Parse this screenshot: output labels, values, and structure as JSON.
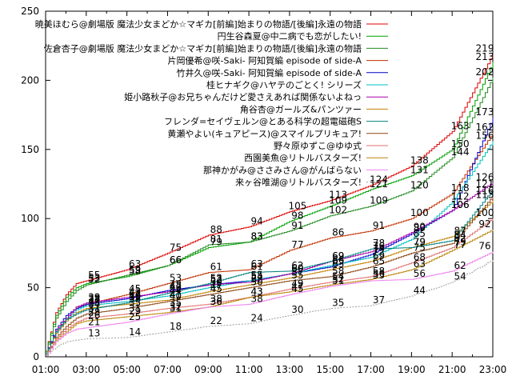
{
  "chart_data": {
    "type": "line",
    "title": "",
    "xlabel": "",
    "ylabel": "",
    "xlim": [
      1,
      23
    ],
    "ylim": [
      0,
      250
    ],
    "x_ticks": [
      "01:00",
      "03:00",
      "05:00",
      "07:00",
      "09:00",
      "11:00",
      "13:00",
      "15:00",
      "17:00",
      "19:00",
      "21:00",
      "23:00"
    ],
    "y_ticks": [
      0,
      50,
      100,
      150,
      200,
      250
    ],
    "grid": false,
    "legend": "top-right",
    "series": [
      {
        "name": "暁美ほむら@劇場版 魔法少女まどか☆マギカ[前編]始まりの物語/[後編]永遠の物語",
        "color": "#dd0000",
        "dash": "",
        "points": [
          [
            1,
            4
          ],
          [
            1.5,
            32
          ],
          [
            2,
            45
          ],
          [
            2.5,
            53
          ],
          [
            3,
            55
          ],
          [
            5,
            63
          ],
          [
            7,
            75
          ],
          [
            9,
            88
          ],
          [
            11,
            94
          ],
          [
            13,
            105
          ],
          [
            15,
            113
          ],
          [
            17,
            124
          ],
          [
            19,
            138
          ],
          [
            21,
            163
          ],
          [
            23,
            219
          ]
        ],
        "labels": [
          55,
          63,
          75,
          88,
          94,
          105,
          113,
          124,
          138,
          163,
          219
        ]
      },
      {
        "name": "円生谷森夏@中二病でも恋がしたい!",
        "color": "#00a000",
        "dash": "",
        "points": [
          [
            1,
            4
          ],
          [
            1.5,
            30
          ],
          [
            2,
            43
          ],
          [
            2.5,
            50
          ],
          [
            3,
            53
          ],
          [
            5,
            58
          ],
          [
            7,
            66
          ],
          [
            9,
            79
          ],
          [
            11,
            83
          ],
          [
            13,
            98
          ],
          [
            15,
            109
          ],
          [
            17,
            121
          ],
          [
            19,
            131
          ],
          [
            21,
            150
          ],
          [
            23,
            213
          ]
        ],
        "labels": [
          53,
          58,
          66,
          79,
          83,
          98,
          109,
          121,
          131,
          150,
          213
        ]
      },
      {
        "name": "佐倉杏子@劇場版 魔法少女まどか☆マギカ[前編]始まりの物語/[後編]永遠の物語",
        "color": "#228b22",
        "dash": "",
        "points": [
          [
            1,
            3
          ],
          [
            1.5,
            28
          ],
          [
            2,
            40
          ],
          [
            2.5,
            48
          ],
          [
            3,
            52
          ],
          [
            5,
            59
          ],
          [
            7,
            66
          ],
          [
            9,
            81
          ],
          [
            11,
            83
          ],
          [
            13,
            91
          ],
          [
            15,
            102
          ],
          [
            17,
            109
          ],
          [
            19,
            120
          ],
          [
            21,
            144
          ],
          [
            23,
            202
          ]
        ],
        "labels": [
          52,
          59,
          66,
          81,
          83,
          91,
          102,
          109,
          120,
          144,
          202
        ]
      },
      {
        "name": "片岡優希@咲-Saki- 阿知賀編 episode of side-A",
        "color": "#c03000",
        "dash": "",
        "points": [
          [
            1,
            2
          ],
          [
            1.5,
            18
          ],
          [
            2,
            28
          ],
          [
            2.5,
            36
          ],
          [
            3,
            38
          ],
          [
            5,
            45
          ],
          [
            7,
            53
          ],
          [
            9,
            61
          ],
          [
            11,
            63
          ],
          [
            13,
            77
          ],
          [
            15,
            86
          ],
          [
            17,
            91
          ],
          [
            19,
            100
          ],
          [
            21,
            118
          ],
          [
            23,
            162
          ]
        ],
        "labels": [
          38,
          45,
          53,
          61,
          63,
          77,
          86,
          91,
          100,
          118,
          162
        ]
      },
      {
        "name": "竹井久@咲-Saki- 阿知賀編 episode of side-A",
        "color": "#0000cc",
        "dash": "",
        "points": [
          [
            1,
            2
          ],
          [
            1.5,
            20
          ],
          [
            2,
            30
          ],
          [
            2.5,
            35
          ],
          [
            3,
            38
          ],
          [
            5,
            42
          ],
          [
            7,
            48
          ],
          [
            9,
            52
          ],
          [
            11,
            55
          ],
          [
            13,
            60
          ],
          [
            15,
            65
          ],
          [
            17,
            74
          ],
          [
            19,
            89
          ],
          [
            21,
            106
          ],
          [
            23,
            173
          ]
        ],
        "labels": [
          38,
          42,
          48,
          52,
          55,
          60,
          65,
          74,
          89,
          106,
          173
        ]
      },
      {
        "name": "桂ヒナギク@ハヤテのごとく! シリーズ",
        "color": "#00c0c0",
        "dash": "",
        "points": [
          [
            1,
            1
          ],
          [
            1.5,
            18
          ],
          [
            2,
            27
          ],
          [
            2.5,
            34
          ],
          [
            3,
            37
          ],
          [
            5,
            40
          ],
          [
            7,
            44
          ],
          [
            9,
            50
          ],
          [
            11,
            55
          ],
          [
            13,
            60
          ],
          [
            15,
            66
          ],
          [
            17,
            72
          ],
          [
            19,
            85
          ],
          [
            21,
            112
          ],
          [
            23,
            156
          ]
        ],
        "labels": [
          37,
          40,
          44,
          50,
          55,
          60,
          66,
          72,
          85,
          112,
          156
        ]
      },
      {
        "name": "姫小路秋子@お兄ちゃんだけど愛さえあれば関係ないよねっ",
        "color": "#aa00aa",
        "dash": "",
        "points": [
          [
            1,
            2
          ],
          [
            1.5,
            19
          ],
          [
            2,
            28
          ],
          [
            2.5,
            36
          ],
          [
            3,
            39
          ],
          [
            5,
            43
          ],
          [
            7,
            47
          ],
          [
            9,
            52
          ],
          [
            11,
            54
          ],
          [
            13,
            60
          ],
          [
            15,
            69
          ],
          [
            17,
            76
          ],
          [
            19,
            90
          ],
          [
            21,
            106
          ],
          [
            23,
            126
          ]
        ],
        "labels": [
          39,
          43,
          47,
          52,
          54,
          60,
          69,
          76,
          90,
          106,
          126
        ]
      },
      {
        "name": "角谷杏@ガールズ&パンツァー",
        "color": "#c08000",
        "dash": "",
        "points": [
          [
            1,
            2
          ],
          [
            1.5,
            17
          ],
          [
            2,
            26
          ],
          [
            2.5,
            32
          ],
          [
            3,
            35
          ],
          [
            5,
            38
          ],
          [
            7,
            41
          ],
          [
            9,
            47
          ],
          [
            11,
            52
          ],
          [
            13,
            57
          ],
          [
            15,
            63
          ],
          [
            17,
            69
          ],
          [
            19,
            79
          ],
          [
            21,
            87
          ],
          [
            23,
            113
          ]
        ],
        "labels": [
          35,
          38,
          41,
          47,
          52,
          57,
          63,
          69,
          79,
          87,
          113
        ]
      },
      {
        "name": "フレンダ=セイヴェルン@とある科学の超電磁砲S",
        "color": "#008080",
        "dash": "",
        "points": [
          [
            1,
            2
          ],
          [
            1.5,
            18
          ],
          [
            2,
            27
          ],
          [
            2.5,
            31
          ],
          [
            3,
            34
          ],
          [
            5,
            39
          ],
          [
            7,
            46
          ],
          [
            9,
            53
          ],
          [
            11,
            61
          ],
          [
            13,
            62
          ],
          [
            15,
            69
          ],
          [
            17,
            78
          ],
          [
            19,
            79
          ],
          [
            21,
            84
          ],
          [
            23,
            121
          ]
        ],
        "labels": [
          34,
          39,
          46,
          53,
          61,
          62,
          69,
          78,
          79,
          84,
          121
        ]
      },
      {
        "name": "黄瀬やよい(キュアピース)@スマイルプリキュア!",
        "color": "#8b4513",
        "dash": "",
        "points": [
          [
            1,
            1
          ],
          [
            1.5,
            14
          ],
          [
            2,
            22
          ],
          [
            2.5,
            28
          ],
          [
            3,
            31
          ],
          [
            5,
            35
          ],
          [
            7,
            40
          ],
          [
            9,
            45
          ],
          [
            11,
            50
          ],
          [
            13,
            55
          ],
          [
            15,
            58
          ],
          [
            17,
            65
          ],
          [
            19,
            75
          ],
          [
            21,
            82
          ],
          [
            23,
            116
          ]
        ],
        "labels": [
          31,
          35,
          40,
          45,
          50,
          55,
          58,
          65,
          75,
          82,
          116
        ]
      },
      {
        "name": "野々原ゆずこ@ゆゆ式",
        "color": "#e07070",
        "dash": "",
        "points": [
          [
            1,
            1
          ],
          [
            1.5,
            13
          ],
          [
            2,
            20
          ],
          [
            2.5,
            25
          ],
          [
            3,
            28
          ],
          [
            5,
            31
          ],
          [
            7,
            35
          ],
          [
            9,
            38
          ],
          [
            11,
            43
          ],
          [
            13,
            49
          ],
          [
            15,
            54
          ],
          [
            17,
            58
          ],
          [
            19,
            68
          ],
          [
            21,
            79
          ],
          [
            23,
            100
          ]
        ],
        "labels": [
          28,
          31,
          35,
          38,
          43,
          49,
          54,
          58,
          68,
          79,
          100
        ]
      },
      {
        "name": "西園美魚@リトルバスターズ!",
        "color": "#b8860b",
        "dash": "",
        "points": [
          [
            1,
            1
          ],
          [
            1.5,
            12
          ],
          [
            2,
            18
          ],
          [
            2.5,
            24
          ],
          [
            3,
            26
          ],
          [
            5,
            29
          ],
          [
            7,
            32
          ],
          [
            9,
            36
          ],
          [
            11,
            43
          ],
          [
            13,
            47
          ],
          [
            15,
            52
          ],
          [
            17,
            56
          ],
          [
            19,
            63
          ],
          [
            21,
            77
          ],
          [
            23,
            92
          ]
        ],
        "labels": [
          26,
          29,
          32,
          36,
          43,
          47,
          52,
          56,
          63,
          77,
          92
        ]
      },
      {
        "name": "那神かがみ@ささみさん@がんばらない",
        "color": "#ee82ee",
        "dash": "",
        "points": [
          [
            1,
            1
          ],
          [
            1.5,
            11
          ],
          [
            2,
            17
          ],
          [
            2.5,
            20
          ],
          [
            3,
            21
          ],
          [
            5,
            25
          ],
          [
            7,
            31
          ],
          [
            9,
            36
          ],
          [
            11,
            38
          ],
          [
            13,
            45
          ],
          [
            15,
            51
          ],
          [
            17,
            55
          ],
          [
            19,
            56
          ],
          [
            21,
            62
          ],
          [
            23,
            76
          ]
        ],
        "labels": [
          21,
          25,
          31,
          36,
          38,
          45,
          51,
          55,
          56,
          62,
          76
        ]
      },
      {
        "name": "来ヶ谷唯湖@リトルバスターズ!",
        "color": "#a0a0a0",
        "dash": "2,2",
        "points": [
          [
            1,
            1
          ],
          [
            1.5,
            7
          ],
          [
            2,
            11
          ],
          [
            2.5,
            12
          ],
          [
            3,
            13
          ],
          [
            5,
            14
          ],
          [
            7,
            18
          ],
          [
            9,
            22
          ],
          [
            11,
            24
          ],
          [
            13,
            30
          ],
          [
            15,
            35
          ],
          [
            17,
            37
          ],
          [
            19,
            44
          ],
          [
            21,
            54
          ],
          [
            23,
            70
          ]
        ],
        "labels": [
          13,
          14,
          18,
          22,
          24,
          30,
          35,
          37,
          44,
          54,
          null
        ]
      }
    ]
  }
}
